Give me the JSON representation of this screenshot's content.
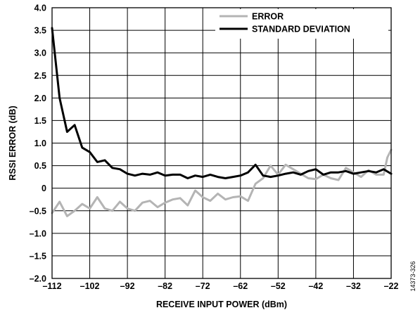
{
  "chart_data": {
    "type": "line",
    "xlabel": "RECEIVE INPUT POWER (dBm)",
    "ylabel": "RSSI ERROR (dB)",
    "xlim": [
      -112,
      -22
    ],
    "ylim": [
      -2.0,
      4.0
    ],
    "x_ticks": [
      -112,
      -102,
      -92,
      -82,
      -72,
      -62,
      -52,
      -42,
      -32,
      -22
    ],
    "y_ticks": [
      -2.0,
      -1.5,
      -1.0,
      -0.5,
      0,
      0.5,
      1.0,
      1.5,
      2.0,
      2.5,
      3.0,
      3.5,
      4.0
    ],
    "x_tick_labels": [
      "–112",
      "–102",
      "–92",
      "–82",
      "–72",
      "–62",
      "–52",
      "–42",
      "–32",
      "–22"
    ],
    "y_tick_labels": [
      "–2.0",
      "–1.5",
      "–1.0",
      "–0.5",
      "0",
      "0.5",
      "1.0",
      "1.5",
      "2.0",
      "2.5",
      "3.0",
      "3.5",
      "4.0"
    ],
    "grid": true,
    "legend_position": "top-right",
    "figure_id": "14373-326",
    "series": [
      {
        "name": "ERROR",
        "color": "#b4b4b4",
        "points": [
          [
            -112,
            -0.55
          ],
          [
            -110,
            -0.3
          ],
          [
            -108,
            -0.62
          ],
          [
            -106,
            -0.5
          ],
          [
            -104,
            -0.35
          ],
          [
            -102,
            -0.45
          ],
          [
            -100,
            -0.2
          ],
          [
            -98,
            -0.45
          ],
          [
            -96,
            -0.5
          ],
          [
            -94,
            -0.3
          ],
          [
            -92,
            -0.45
          ],
          [
            -90,
            -0.5
          ],
          [
            -88,
            -0.32
          ],
          [
            -86,
            -0.28
          ],
          [
            -84,
            -0.42
          ],
          [
            -82,
            -0.32
          ],
          [
            -80,
            -0.25
          ],
          [
            -78,
            -0.22
          ],
          [
            -76,
            -0.38
          ],
          [
            -74,
            -0.05
          ],
          [
            -72,
            -0.2
          ],
          [
            -70,
            -0.28
          ],
          [
            -68,
            -0.12
          ],
          [
            -66,
            -0.25
          ],
          [
            -64,
            -0.2
          ],
          [
            -62,
            -0.18
          ],
          [
            -60,
            -0.28
          ],
          [
            -58,
            0.1
          ],
          [
            -56,
            0.22
          ],
          [
            -54,
            0.5
          ],
          [
            -52,
            0.3
          ],
          [
            -50,
            0.52
          ],
          [
            -48,
            0.42
          ],
          [
            -46,
            0.32
          ],
          [
            -44,
            0.22
          ],
          [
            -42,
            0.2
          ],
          [
            -40,
            0.3
          ],
          [
            -38,
            0.22
          ],
          [
            -36,
            0.18
          ],
          [
            -34,
            0.45
          ],
          [
            -32,
            0.35
          ],
          [
            -30,
            0.25
          ],
          [
            -28,
            0.4
          ],
          [
            -26,
            0.3
          ],
          [
            -24,
            0.3
          ],
          [
            -23,
            0.68
          ],
          [
            -22,
            0.85
          ]
        ]
      },
      {
        "name": "STANDARD DEVIATION",
        "color": "#000000",
        "points": [
          [
            -112,
            3.55
          ],
          [
            -110,
            2.0
          ],
          [
            -108,
            1.25
          ],
          [
            -106,
            1.4
          ],
          [
            -104,
            0.9
          ],
          [
            -102,
            0.8
          ],
          [
            -100,
            0.58
          ],
          [
            -98,
            0.62
          ],
          [
            -96,
            0.45
          ],
          [
            -94,
            0.42
          ],
          [
            -92,
            0.32
          ],
          [
            -90,
            0.28
          ],
          [
            -88,
            0.32
          ],
          [
            -86,
            0.3
          ],
          [
            -84,
            0.35
          ],
          [
            -82,
            0.28
          ],
          [
            -80,
            0.3
          ],
          [
            -78,
            0.3
          ],
          [
            -76,
            0.22
          ],
          [
            -74,
            0.28
          ],
          [
            -72,
            0.25
          ],
          [
            -70,
            0.3
          ],
          [
            -68,
            0.25
          ],
          [
            -66,
            0.22
          ],
          [
            -64,
            0.25
          ],
          [
            -62,
            0.28
          ],
          [
            -60,
            0.35
          ],
          [
            -58,
            0.52
          ],
          [
            -56,
            0.28
          ],
          [
            -54,
            0.25
          ],
          [
            -52,
            0.28
          ],
          [
            -50,
            0.32
          ],
          [
            -48,
            0.35
          ],
          [
            -46,
            0.3
          ],
          [
            -44,
            0.38
          ],
          [
            -42,
            0.42
          ],
          [
            -40,
            0.3
          ],
          [
            -38,
            0.35
          ],
          [
            -36,
            0.35
          ],
          [
            -34,
            0.38
          ],
          [
            -32,
            0.32
          ],
          [
            -30,
            0.35
          ],
          [
            -28,
            0.38
          ],
          [
            -26,
            0.35
          ],
          [
            -24,
            0.42
          ],
          [
            -22,
            0.32
          ]
        ]
      }
    ]
  }
}
